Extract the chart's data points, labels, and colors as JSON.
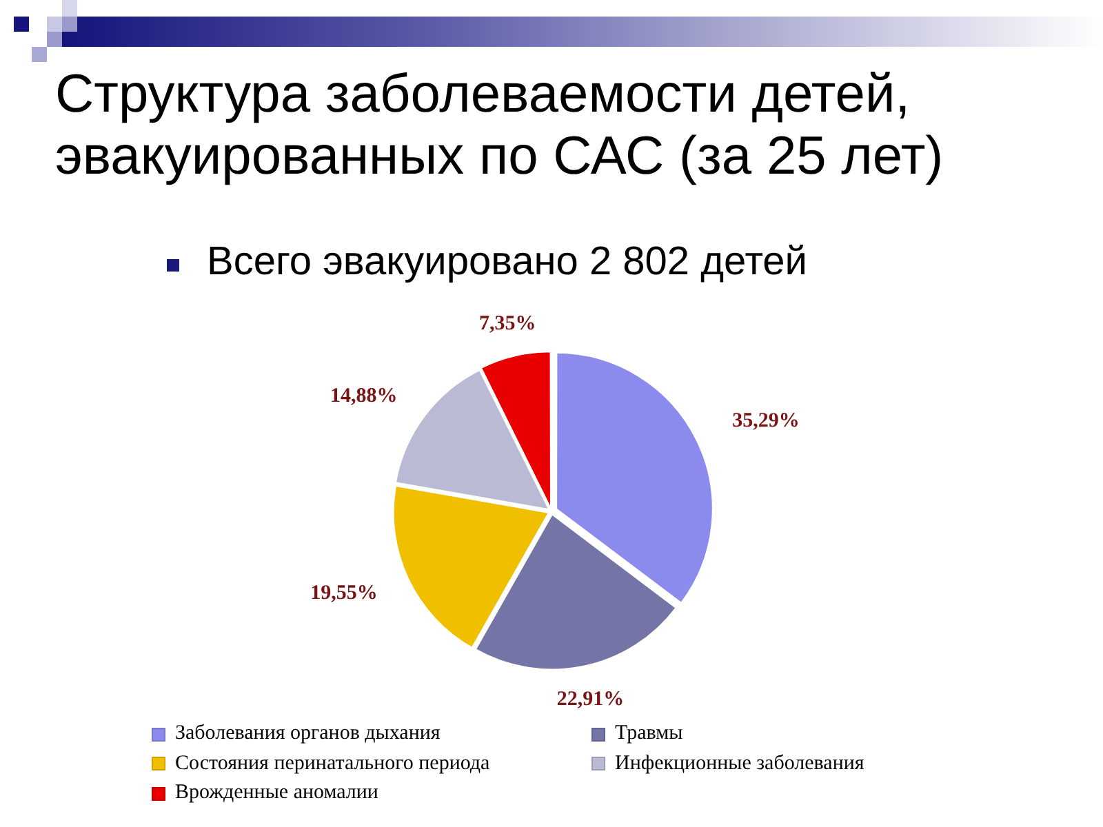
{
  "chart_data": {
    "type": "pie",
    "title": "Структура заболеваемости детей, эвакуированных по САС (за 25 лет)",
    "subtitle": "Всего эвакуировано 2 802 детей",
    "categories": [
      "Заболевания органов дыхания",
      "Травмы",
      "Состояния перинатального периода",
      "Инфекционные заболевания",
      "Врожденные аномалии"
    ],
    "values": [
      35.29,
      22.91,
      19.55,
      14.88,
      7.35
    ],
    "colors": [
      "#8b8bee",
      "#7474a6",
      "#f0c000",
      "#babad4",
      "#e80000"
    ],
    "value_labels": [
      "35,29%",
      "22,91%",
      "19,55%",
      "14,88%",
      "7,35%"
    ],
    "legend": "bottom"
  }
}
